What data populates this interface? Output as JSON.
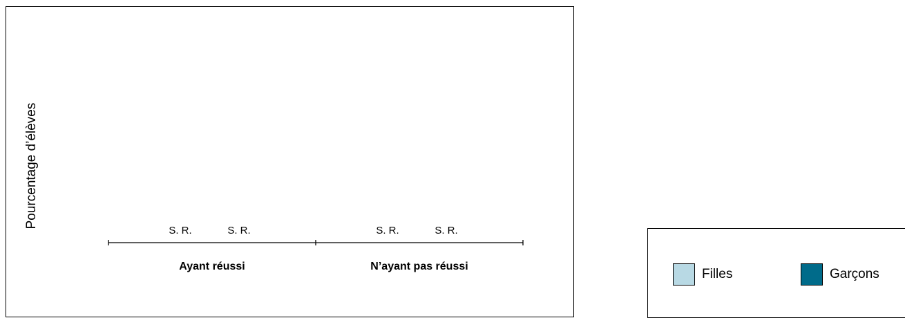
{
  "chart_data": {
    "type": "bar",
    "title": "",
    "xlabel": "",
    "ylabel": "Pourcentage d’élèves",
    "categories": [
      "Ayant réussi",
      "N’ayant pas réussi"
    ],
    "series": [
      {
        "name": "Filles",
        "color": "#b8d9e4",
        "values": [
          null,
          null
        ],
        "data_labels": [
          "S. R.",
          "S. R."
        ]
      },
      {
        "name": "Garçons",
        "color": "#006b8a",
        "values": [
          null,
          null
        ],
        "data_labels": [
          "S. R.",
          "S. R."
        ]
      }
    ],
    "grid": false,
    "legend_position": "bottom-right"
  }
}
